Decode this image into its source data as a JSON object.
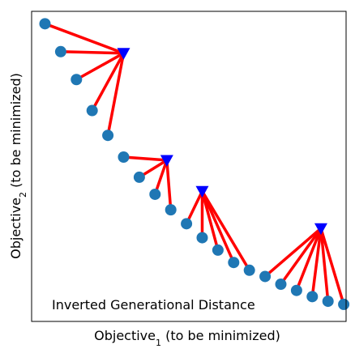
{
  "chart_data": {
    "type": "scatter",
    "title": "",
    "annotation": "Inverted Generational Distance",
    "xlabel": {
      "base": "Objective",
      "sub": "1",
      "suffix": " (to be minimized)"
    },
    "ylabel": {
      "base": "Objective",
      "sub": "2",
      "suffix": " (to be minimized)"
    },
    "grid": false,
    "xticks": false,
    "yticks": false,
    "xlim": [
      0,
      20
    ],
    "ylim": [
      0,
      20
    ],
    "colors": {
      "points": "#1f77b4",
      "reference": "#0000ff",
      "links": "#ff0000"
    },
    "series": [
      {
        "marker": "circle",
        "x": [
          0.85,
          1.85,
          2.85,
          3.85,
          4.85,
          5.85,
          6.85,
          7.85,
          8.85,
          9.85,
          10.85,
          11.85,
          12.85,
          13.85,
          14.85,
          15.85,
          16.85,
          17.85,
          18.85,
          19.85
        ],
        "y": [
          19.2,
          17.4,
          15.6,
          13.6,
          12.0,
          10.6,
          9.3,
          8.2,
          7.2,
          6.3,
          5.4,
          4.6,
          3.8,
          3.3,
          2.9,
          2.4,
          2.0,
          1.6,
          1.3,
          1.1
        ]
      },
      {
        "marker": "triangle-down",
        "x": [
          5.85,
          8.6,
          10.85,
          18.4
        ],
        "y": [
          17.3,
          10.4,
          8.4,
          6.0
        ]
      }
    ],
    "links": [
      {
        "ref": 0,
        "points": [
          0,
          1,
          2,
          3,
          4
        ]
      },
      {
        "ref": 1,
        "points": [
          5,
          6,
          7,
          8
        ]
      },
      {
        "ref": 2,
        "points": [
          9,
          10,
          11,
          12,
          13
        ]
      },
      {
        "ref": 3,
        "points": [
          14,
          15,
          16,
          17,
          18,
          19
        ]
      }
    ]
  }
}
